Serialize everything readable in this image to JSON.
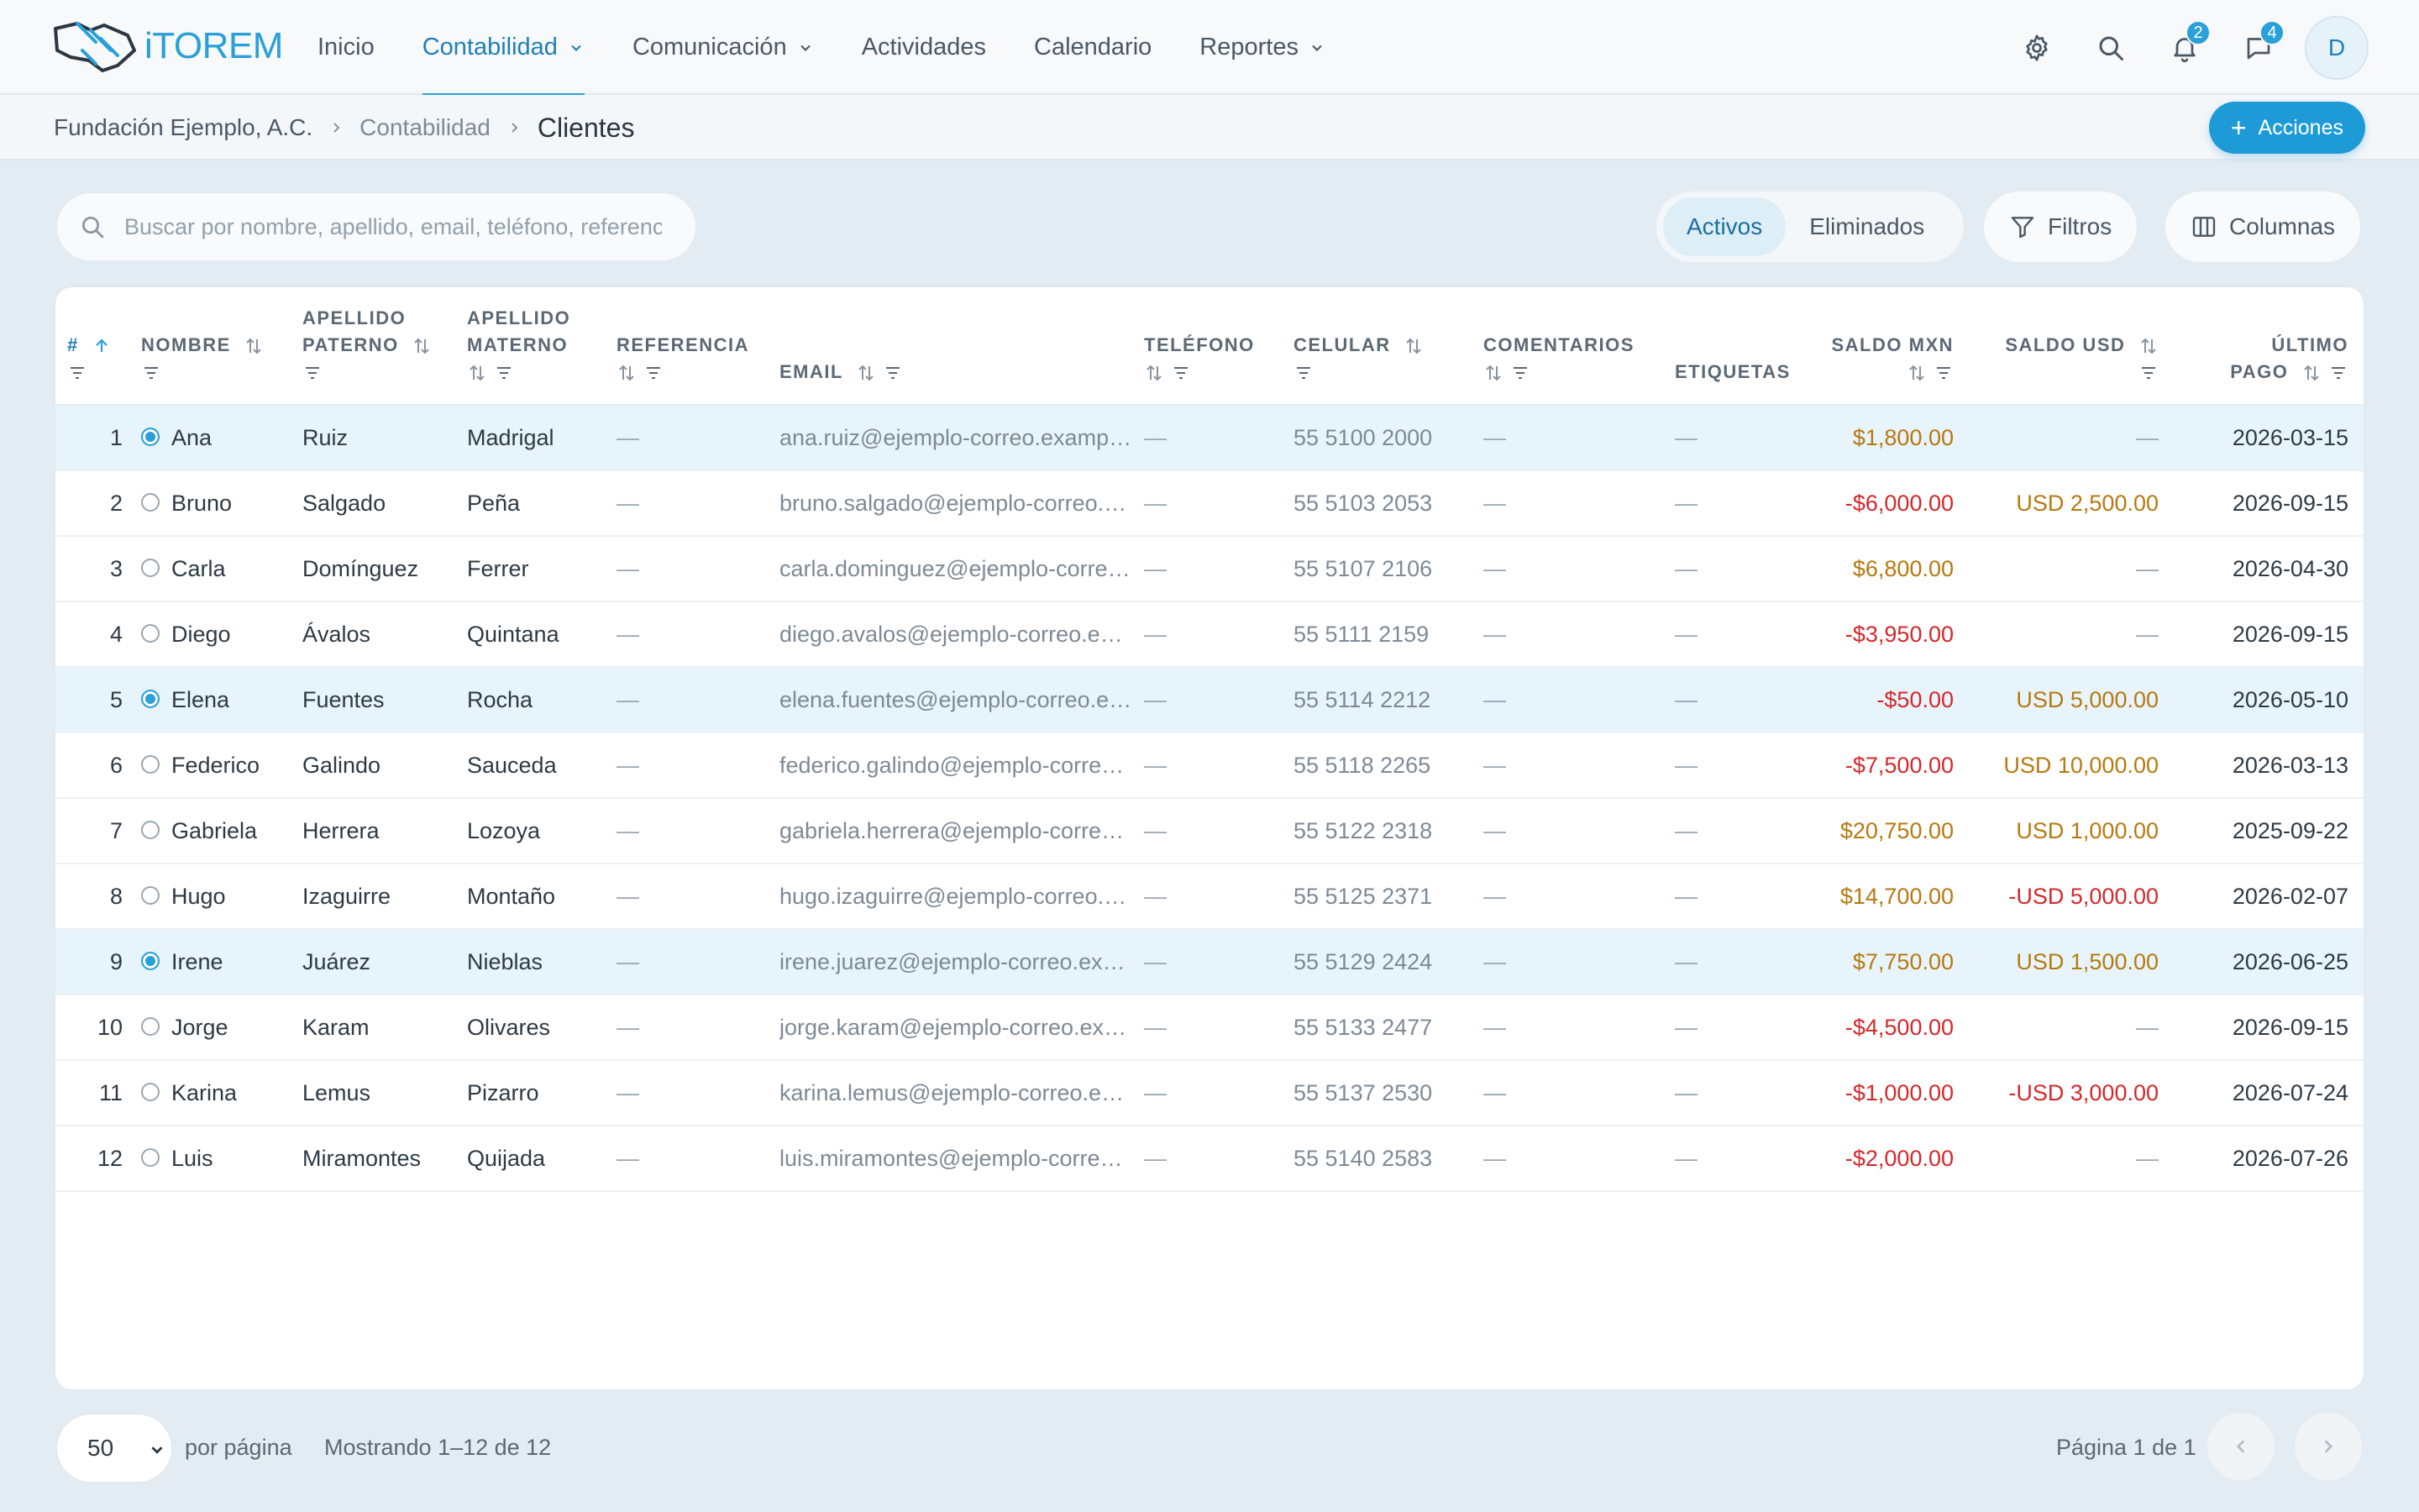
{
  "colors": {
    "accent": "#29a0d8",
    "positive": "#b7790f",
    "negative": "#d4282b",
    "selected_row": "#e8f4fb"
  },
  "header": {
    "logo_text": "iTOREM",
    "nav": [
      {
        "label": "Inicio",
        "dropdown": false
      },
      {
        "label": "Contabilidad",
        "dropdown": true,
        "active": true
      },
      {
        "label": "Comunicación",
        "dropdown": true
      },
      {
        "label": "Actividades",
        "dropdown": false
      },
      {
        "label": "Calendario",
        "dropdown": false
      },
      {
        "label": "Reportes",
        "dropdown": true
      }
    ],
    "icons": [
      "gear-icon",
      "search-icon",
      "bell-icon",
      "chat-icon"
    ],
    "notifications_count": "2",
    "messages_count": "4",
    "avatar_initial": "D"
  },
  "breadcrumb": {
    "org": "Fundación Ejemplo, A.C.",
    "section": "Contabilidad",
    "current": "Clientes"
  },
  "actions_label": "Acciones",
  "toolbar": {
    "search_placeholder": "Buscar por nombre, apellido, email, teléfono, referencia",
    "tab_active": "Activos",
    "tab_deleted": "Eliminados",
    "filters_label": "Filtros",
    "columns_label": "Columnas"
  },
  "table": {
    "headers": {
      "num": "#",
      "nombre": "NOMBRE",
      "paterno_1": "APELLIDO",
      "paterno_2": "PATERNO",
      "materno_1": "APELLIDO",
      "materno_2": "MATERNO",
      "referencia": "REFERENCIA",
      "email": "EMAIL",
      "telefono": "TELÉFONO",
      "celular": "CELULAR",
      "comentarios": "COMENTARIOS",
      "etiquetas": "ETIQUETAS",
      "saldo_mxn": "SALDO MXN",
      "saldo_usd": "SALDO USD",
      "ultimo_1": "ÚLTIMO",
      "ultimo_2": "PAGO"
    },
    "rows": [
      {
        "n": "1",
        "sel": true,
        "nombre": "Ana",
        "paterno": "Ruiz",
        "materno": "Madrigal",
        "ref": "—",
        "email": "ana.ruiz@ejemplo-correo.example.com",
        "tel": "—",
        "cel": "55 5100 2000",
        "com": "—",
        "tags": "—",
        "mxn": "$1,800.00",
        "mxn_neg": false,
        "usd": "—",
        "usd_neg": false,
        "pago": "2026-03-15"
      },
      {
        "n": "2",
        "sel": false,
        "nombre": "Bruno",
        "paterno": "Salgado",
        "materno": "Peña",
        "ref": "—",
        "email": "bruno.salgado@ejemplo-correo.example.com",
        "tel": "—",
        "cel": "55 5103 2053",
        "com": "—",
        "tags": "—",
        "mxn": "-$6,000.00",
        "mxn_neg": true,
        "usd": "USD 2,500.00",
        "usd_neg": false,
        "pago": "2026-09-15"
      },
      {
        "n": "3",
        "sel": false,
        "nombre": "Carla",
        "paterno": "Domínguez",
        "materno": "Ferrer",
        "ref": "—",
        "email": "carla.dominguez@ejemplo-correo.example.com",
        "tel": "—",
        "cel": "55 5107 2106",
        "com": "—",
        "tags": "—",
        "mxn": "$6,800.00",
        "mxn_neg": false,
        "usd": "—",
        "usd_neg": false,
        "pago": "2026-04-30"
      },
      {
        "n": "4",
        "sel": false,
        "nombre": "Diego",
        "paterno": "Ávalos",
        "materno": "Quintana",
        "ref": "—",
        "email": "diego.avalos@ejemplo-correo.example.com",
        "tel": "—",
        "cel": "55 5111 2159",
        "com": "—",
        "tags": "—",
        "mxn": "-$3,950.00",
        "mxn_neg": true,
        "usd": "—",
        "usd_neg": false,
        "pago": "2026-09-15"
      },
      {
        "n": "5",
        "sel": true,
        "nombre": "Elena",
        "paterno": "Fuentes",
        "materno": "Rocha",
        "ref": "—",
        "email": "elena.fuentes@ejemplo-correo.example.com",
        "tel": "—",
        "cel": "55 5114 2212",
        "com": "—",
        "tags": "—",
        "mxn": "-$50.00",
        "mxn_neg": true,
        "usd": "USD 5,000.00",
        "usd_neg": false,
        "pago": "2026-05-10"
      },
      {
        "n": "6",
        "sel": false,
        "nombre": "Federico",
        "paterno": "Galindo",
        "materno": "Sauceda",
        "ref": "—",
        "email": "federico.galindo@ejemplo-correo.example.com",
        "tel": "—",
        "cel": "55 5118 2265",
        "com": "—",
        "tags": "—",
        "mxn": "-$7,500.00",
        "mxn_neg": true,
        "usd": "USD 10,000.00",
        "usd_neg": false,
        "pago": "2026-03-13"
      },
      {
        "n": "7",
        "sel": false,
        "nombre": "Gabriela",
        "paterno": "Herrera",
        "materno": "Lozoya",
        "ref": "—",
        "email": "gabriela.herrera@ejemplo-correo.example.com",
        "tel": "—",
        "cel": "55 5122 2318",
        "com": "—",
        "tags": "—",
        "mxn": "$20,750.00",
        "mxn_neg": false,
        "usd": "USD 1,000.00",
        "usd_neg": false,
        "pago": "2025-09-22"
      },
      {
        "n": "8",
        "sel": false,
        "nombre": "Hugo",
        "paterno": "Izaguirre",
        "materno": "Montaño",
        "ref": "—",
        "email": "hugo.izaguirre@ejemplo-correo.example.com",
        "tel": "—",
        "cel": "55 5125 2371",
        "com": "—",
        "tags": "—",
        "mxn": "$14,700.00",
        "mxn_neg": false,
        "usd": "-USD 5,000.00",
        "usd_neg": true,
        "pago": "2026-02-07"
      },
      {
        "n": "9",
        "sel": true,
        "nombre": "Irene",
        "paterno": "Juárez",
        "materno": "Nieblas",
        "ref": "—",
        "email": "irene.juarez@ejemplo-correo.example.com",
        "tel": "—",
        "cel": "55 5129 2424",
        "com": "—",
        "tags": "—",
        "mxn": "$7,750.00",
        "mxn_neg": false,
        "usd": "USD 1,500.00",
        "usd_neg": false,
        "pago": "2026-06-25"
      },
      {
        "n": "10",
        "sel": false,
        "nombre": "Jorge",
        "paterno": "Karam",
        "materno": "Olivares",
        "ref": "—",
        "email": "jorge.karam@ejemplo-correo.example.com",
        "tel": "—",
        "cel": "55 5133 2477",
        "com": "—",
        "tags": "—",
        "mxn": "-$4,500.00",
        "mxn_neg": true,
        "usd": "—",
        "usd_neg": false,
        "pago": "2026-09-15"
      },
      {
        "n": "11",
        "sel": false,
        "nombre": "Karina",
        "paterno": "Lemus",
        "materno": "Pizarro",
        "ref": "—",
        "email": "karina.lemus@ejemplo-correo.example.com",
        "tel": "—",
        "cel": "55 5137 2530",
        "com": "—",
        "tags": "—",
        "mxn": "-$1,000.00",
        "mxn_neg": true,
        "usd": "-USD 3,000.00",
        "usd_neg": true,
        "pago": "2026-07-24"
      },
      {
        "n": "12",
        "sel": false,
        "nombre": "Luis",
        "paterno": "Miramontes",
        "materno": "Quijada",
        "ref": "—",
        "email": "luis.miramontes@ejemplo-correo.example.com",
        "tel": "—",
        "cel": "55 5140 2583",
        "com": "—",
        "tags": "—",
        "mxn": "-$2,000.00",
        "mxn_neg": true,
        "usd": "—",
        "usd_neg": false,
        "pago": "2026-07-26"
      }
    ]
  },
  "footer": {
    "page_size": "50",
    "per_page_label": "por página",
    "showing": "Mostrando 1–12 de 12",
    "page_info": "Página 1 de 1"
  }
}
